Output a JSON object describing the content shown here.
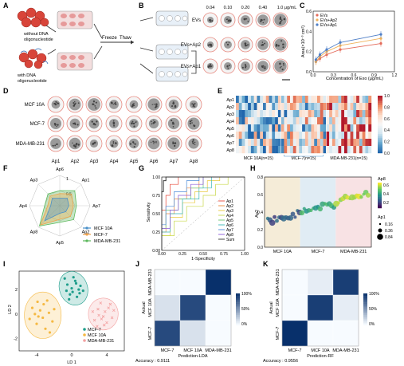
{
  "panels": {
    "A": {
      "letter": "A",
      "top_label": [
        "without DNA",
        "oligonucleotide"
      ],
      "bottom_label": [
        "with DNA",
        "oligonucleotide"
      ],
      "freeze": "Freeze",
      "thaw": "Thaw"
    },
    "B": {
      "letter": "B",
      "concentrations": [
        "0.04",
        "0.10",
        "0.20",
        "0.40",
        "1.0 μg/mL"
      ],
      "rows": [
        "EVs",
        "EVs+Ap2",
        "EVs+Ap1"
      ]
    },
    "C": {
      "letter": "C",
      "chart_data": {
        "type": "line",
        "ylabel": "Area(×10⁻³ cm²)",
        "xlabel": "Concentration of Exo (μg/mL)",
        "xlim": [
          0.0,
          1.2
        ],
        "ylim": [
          0.0,
          0.6
        ],
        "xticks": [
          "0.0",
          "0.3",
          "0.6",
          "0.9",
          "1.2"
        ],
        "yticks": [
          "0.0",
          "0.2",
          "0.4",
          "0.6"
        ],
        "x": [
          0.04,
          0.1,
          0.2,
          0.4,
          1.0
        ],
        "series": [
          {
            "name": "EVs",
            "values": [
              0.1,
              0.13,
              0.17,
              0.22,
              0.28
            ],
            "color": "#e46a5a"
          },
          {
            "name": "EVs+Ap2",
            "values": [
              0.1,
              0.15,
              0.2,
              0.26,
              0.33
            ],
            "color": "#f0b25a"
          },
          {
            "name": "EVs+Ap1",
            "values": [
              0.12,
              0.17,
              0.22,
              0.29,
              0.37
            ],
            "color": "#4f7fc7"
          }
        ],
        "legend": "top-left"
      }
    },
    "D": {
      "letter": "D",
      "rows": [
        "MCF 10A",
        "MCF-7",
        "MDA-MB-231"
      ],
      "cols": [
        "Ap1",
        "Ap2",
        "Ap3",
        "Ap4",
        "Ap5",
        "Ap6",
        "Ap7",
        "Ap8"
      ]
    },
    "E": {
      "letter": "E",
      "chart_data": {
        "type": "heatmap",
        "rows": [
          "Ap1",
          "Ap2",
          "Ap3",
          "Ap4",
          "Ap5",
          "Ap6",
          "Ap7",
          "Ap8"
        ],
        "groups": [
          "MCF 10A(n=15)",
          "MCF-7(n=15)",
          "MDA-MB-231(n=15)"
        ],
        "colorbar_ticks": [
          "1.0",
          "0.8",
          "0.6",
          "0.4",
          "0.2",
          "0.0"
        ],
        "vmin": 0.0,
        "vmax": 1.0
      }
    },
    "F": {
      "letter": "F",
      "chart_data": {
        "type": "radar",
        "axes": [
          "Ap1",
          "Ap7",
          "Ap2",
          "Ap5",
          "Ap8",
          "Ap4",
          "Ap3",
          "Ap6"
        ],
        "rticks": [
          "0.5",
          "1"
        ],
        "series": [
          {
            "name": "MCF 10A",
            "values": [
              0.35,
              0.3,
              0.28,
              0.25,
              0.7,
              0.3,
              0.35,
              0.25
            ],
            "color": "#4a90c8"
          },
          {
            "name": "MCF-7",
            "values": [
              0.55,
              0.45,
              0.5,
              0.45,
              0.9,
              0.4,
              0.45,
              0.4
            ],
            "color": "#f0a24a"
          },
          {
            "name": "MDA-MB-231",
            "values": [
              0.7,
              0.55,
              0.65,
              0.55,
              0.95,
              0.5,
              0.55,
              0.5
            ],
            "color": "#5cb85c"
          }
        ]
      }
    },
    "G": {
      "letter": "G",
      "chart_data": {
        "type": "line",
        "xlabel": "1-Specificity",
        "ylabel": "Sensitivity",
        "xlim": [
          0.0,
          1.0
        ],
        "ylim": [
          0.0,
          1.0
        ],
        "xticks": [
          "0.00",
          "0.25",
          "0.50",
          "0.75",
          "1.00"
        ],
        "yticks": [
          "0.00",
          "0.25",
          "0.50",
          "0.75",
          "1.00"
        ],
        "series": [
          {
            "name": "Ap1",
            "color": "#e8483a",
            "points": [
              [
                0,
                0
              ],
              [
                0,
                0.3
              ],
              [
                0.05,
                0.55
              ],
              [
                0.1,
                0.75
              ],
              [
                0.2,
                0.9
              ],
              [
                0.35,
                1
              ],
              [
                1,
                1
              ]
            ]
          },
          {
            "name": "Ap2",
            "color": "#f08a3a",
            "points": [
              [
                0,
                0
              ],
              [
                0.05,
                0.25
              ],
              [
                0.15,
                0.5
              ],
              [
                0.3,
                0.7
              ],
              [
                0.45,
                0.85
              ],
              [
                0.6,
                1
              ],
              [
                1,
                1
              ]
            ]
          },
          {
            "name": "Ap3",
            "color": "#e8c83a",
            "points": [
              [
                0,
                0
              ],
              [
                0.1,
                0.2
              ],
              [
                0.25,
                0.45
              ],
              [
                0.4,
                0.65
              ],
              [
                0.55,
                0.8
              ],
              [
                0.7,
                0.95
              ],
              [
                1,
                1
              ]
            ]
          },
          {
            "name": "Ap4",
            "color": "#c8d84a",
            "points": [
              [
                0,
                0
              ],
              [
                0.15,
                0.2
              ],
              [
                0.3,
                0.4
              ],
              [
                0.5,
                0.6
              ],
              [
                0.65,
                0.75
              ],
              [
                0.8,
                0.9
              ],
              [
                1,
                1
              ]
            ]
          },
          {
            "name": "Ap5",
            "color": "#6ac46a",
            "points": [
              [
                0,
                0
              ],
              [
                0.05,
                0.3
              ],
              [
                0.2,
                0.55
              ],
              [
                0.35,
                0.7
              ],
              [
                0.5,
                0.85
              ],
              [
                0.7,
                1
              ],
              [
                1,
                1
              ]
            ]
          },
          {
            "name": "Ap6",
            "color": "#3ab8b8",
            "points": [
              [
                0,
                0
              ],
              [
                0.1,
                0.25
              ],
              [
                0.25,
                0.5
              ],
              [
                0.45,
                0.7
              ],
              [
                0.6,
                0.85
              ],
              [
                0.8,
                1
              ],
              [
                1,
                1
              ]
            ]
          },
          {
            "name": "Ap7",
            "color": "#4a8ad8",
            "points": [
              [
                0,
                0
              ],
              [
                0.05,
                0.35
              ],
              [
                0.15,
                0.6
              ],
              [
                0.3,
                0.8
              ],
              [
                0.45,
                0.95
              ],
              [
                0.55,
                1
              ],
              [
                1,
                1
              ]
            ]
          },
          {
            "name": "Ap8",
            "color": "#8a5ad8",
            "points": [
              [
                0,
                0
              ],
              [
                0.1,
                0.3
              ],
              [
                0.2,
                0.55
              ],
              [
                0.35,
                0.75
              ],
              [
                0.5,
                0.9
              ],
              [
                0.65,
                1
              ],
              [
                1,
                1
              ]
            ]
          },
          {
            "name": "Sum",
            "color": "#333333",
            "points": [
              [
                0,
                0
              ],
              [
                0,
                0.6
              ],
              [
                0.02,
                0.8
              ],
              [
                0.05,
                0.95
              ],
              [
                0.1,
                1
              ],
              [
                1,
                1
              ]
            ]
          }
        ]
      }
    },
    "H": {
      "letter": "H",
      "chart_data": {
        "type": "scatter",
        "ylabel": "Ap2",
        "categories": [
          "MCF 10A",
          "MCF-7",
          "MDA-MB-231"
        ],
        "ylim": [
          0.0,
          0.8
        ],
        "yticks": [
          "0.0",
          "0.2",
          "0.4",
          "0.6",
          "0.8"
        ],
        "colorbar_title": "Ap8",
        "colorbar_ticks": [
          "0.6",
          "0.4",
          "0.2"
        ],
        "size_title": "Ap1",
        "size_legend": [
          "0.16",
          "0.36",
          "0.84"
        ]
      }
    },
    "I": {
      "letter": "I",
      "chart_data": {
        "type": "scatter",
        "xlabel": "LD 1",
        "ylabel": "LD 2",
        "xticks": [
          "-4",
          "0",
          "4"
        ],
        "yticks": [
          "-2",
          "0",
          "2"
        ],
        "xlim": [
          -6,
          6
        ],
        "ylim": [
          -3,
          3.5
        ],
        "series": [
          {
            "name": "MCF-7",
            "color": "#1f9e8c",
            "points": [
              [
                -0.8,
                2.9
              ],
              [
                -0.5,
                2.4
              ],
              [
                0,
                2.1
              ],
              [
                0.4,
                2.7
              ],
              [
                0.8,
                2.0
              ],
              [
                -0.2,
                1.6
              ],
              [
                0.6,
                1.4
              ],
              [
                1.0,
                2.3
              ],
              [
                -0.6,
                1.9
              ],
              [
                0.2,
                3.0
              ],
              [
                0.9,
                1.7
              ],
              [
                -0.3,
                1.2
              ],
              [
                0.5,
                2.5
              ],
              [
                1.3,
                1.9
              ],
              [
                0.1,
                1.8
              ]
            ]
          },
          {
            "name": "MCF 10A",
            "color": "#f5b943",
            "points": [
              [
                -4.5,
                0.5
              ],
              [
                -3.8,
                -0.2
              ],
              [
                -3.2,
                0.8
              ],
              [
                -4.0,
                -0.8
              ],
              [
                -2.6,
                0.1
              ],
              [
                -3.0,
                -1.2
              ],
              [
                -2.2,
                -0.6
              ],
              [
                -3.6,
                0.3
              ],
              [
                -4.8,
                -0.4
              ],
              [
                -2.8,
                1.1
              ],
              [
                -3.3,
                -0.3
              ],
              [
                -2.0,
                0.4
              ],
              [
                -3.9,
                1.0
              ],
              [
                -2.5,
                -1.5
              ],
              [
                -4.2,
                0.0
              ]
            ]
          },
          {
            "name": "MDA-MB-231",
            "color": "#f3a0a0",
            "points": [
              [
                3.0,
                0.4
              ],
              [
                3.6,
                -0.2
              ],
              [
                4.2,
                0.5
              ],
              [
                2.6,
                -0.5
              ],
              [
                3.3,
                0.9
              ],
              [
                4.6,
                -0.3
              ],
              [
                3.8,
                0.2
              ],
              [
                2.9,
                -1.0
              ],
              [
                4.0,
                -0.7
              ],
              [
                3.4,
                -0.4
              ],
              [
                2.4,
                0.2
              ],
              [
                4.4,
                0.8
              ],
              [
                3.1,
                -0.1
              ],
              [
                3.7,
                -0.9
              ],
              [
                4.8,
                0.3
              ]
            ]
          }
        ],
        "legend": "bottom-right"
      }
    },
    "J": {
      "letter": "J",
      "chart_data": {
        "type": "heatmap",
        "xlabel": "Prediction-LDA",
        "ylabel": "Actual",
        "x": [
          "MCF-7",
          "MCF 10A",
          "MDA-MB-231"
        ],
        "y": [
          "MDA-MB-231",
          "MCF 10A",
          "MCF-7"
        ],
        "values": [
          [
            0.0,
            0.0,
            1.0
          ],
          [
            0.13,
            0.87,
            0.0
          ],
          [
            0.87,
            0.13,
            0.0
          ]
        ],
        "colorbar_ticks": [
          "100%",
          "50%",
          "0%"
        ],
        "accuracy": "Accuracy : 0.9111"
      }
    },
    "K": {
      "letter": "K",
      "chart_data": {
        "type": "heatmap",
        "xlabel": "Prediction-RF",
        "ylabel": "Actual",
        "x": [
          "MCF-7",
          "MCF 10A",
          "MDA-MB-231"
        ],
        "y": [
          "MDA-MB-231",
          "MCF 10A",
          "MCF-7"
        ],
        "values": [
          [
            0.0,
            0.07,
            0.93
          ],
          [
            0.0,
            0.93,
            0.07
          ],
          [
            1.0,
            0.0,
            0.0
          ]
        ],
        "colorbar_ticks": [
          "100%",
          "50%",
          "0%"
        ],
        "accuracy": "Accuracy : 0.9556"
      }
    }
  },
  "colors": {
    "red": "#d8453a",
    "blue": "#3b6fb6",
    "teal": "#1f9e8c",
    "orange": "#f5b943",
    "pink": "#f3a0a0",
    "navy": "#1d3a7a"
  }
}
